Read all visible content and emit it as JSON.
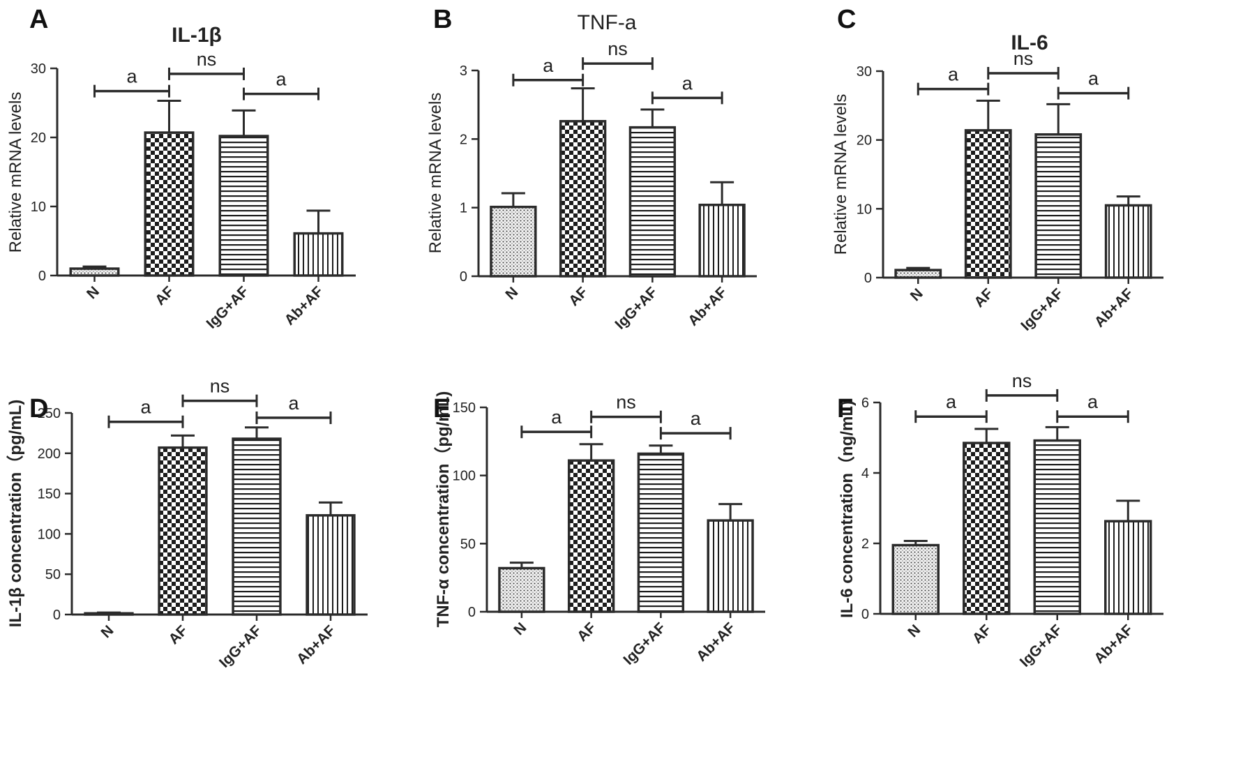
{
  "colors": {
    "ink": "#2b2b2b",
    "background": "#ffffff"
  },
  "chart_data": [
    {
      "panel": "A",
      "type": "bar",
      "title": "IL-1β",
      "title_bold": true,
      "ylabel": "Relative mRNA levels",
      "ylabel_bold": false,
      "categories": [
        "N",
        "AF",
        "IgG+AF",
        "Ab+AF"
      ],
      "values": [
        1,
        20.7,
        20.2,
        6.1
      ],
      "errors": [
        0.3,
        4.6,
        3.7,
        3.3
      ],
      "patterns": [
        "dots",
        "checker",
        "hlines",
        "vlines"
      ],
      "ylim": [
        0,
        30
      ],
      "yticks": [
        0,
        10,
        20,
        30
      ],
      "comparisons": [
        {
          "from": 0,
          "to": 1,
          "label": "a",
          "y": 26.7
        },
        {
          "from": 1,
          "to": 2,
          "label": "ns",
          "y": 29.2
        },
        {
          "from": 2,
          "to": 3,
          "label": "a",
          "y": 26.3
        }
      ]
    },
    {
      "panel": "B",
      "type": "bar",
      "title": "TNF-a",
      "title_bold": false,
      "ylabel": "Relative mRNA levels",
      "ylabel_bold": false,
      "categories": [
        "N",
        "AF",
        "IgG+AF",
        "Ab+AF"
      ],
      "values": [
        1.01,
        2.26,
        2.17,
        1.04
      ],
      "errors": [
        0.2,
        0.48,
        0.26,
        0.33
      ],
      "patterns": [
        "dots",
        "checker",
        "hlines",
        "vlines"
      ],
      "ylim": [
        0,
        3
      ],
      "yticks": [
        0,
        1,
        2,
        3
      ],
      "comparisons": [
        {
          "from": 0,
          "to": 1,
          "label": "a",
          "y": 2.86
        },
        {
          "from": 1,
          "to": 2,
          "label": "ns",
          "y": 3.1
        },
        {
          "from": 2,
          "to": 3,
          "label": "a",
          "y": 2.6
        }
      ]
    },
    {
      "panel": "C",
      "type": "bar",
      "title": "IL-6",
      "title_bold": true,
      "ylabel": "Relative mRNA levels",
      "ylabel_bold": false,
      "categories": [
        "N",
        "AF",
        "IgG+AF",
        "Ab+AF"
      ],
      "values": [
        1.1,
        21.4,
        20.8,
        10.5
      ],
      "errors": [
        0.3,
        4.3,
        4.4,
        1.3
      ],
      "patterns": [
        "dots",
        "checker",
        "hlines",
        "vlines"
      ],
      "ylim": [
        0,
        30
      ],
      "yticks": [
        0,
        10,
        20,
        30
      ],
      "comparisons": [
        {
          "from": 0,
          "to": 1,
          "label": "a",
          "y": 27.4
        },
        {
          "from": 1,
          "to": 2,
          "label": "ns",
          "y": 29.7
        },
        {
          "from": 2,
          "to": 3,
          "label": "a",
          "y": 26.8
        }
      ]
    },
    {
      "panel": "D",
      "type": "bar",
      "title": "",
      "title_bold": false,
      "ylabel": "IL-1β concentration（pg/mL)",
      "ylabel_bold": true,
      "categories": [
        "N",
        "AF",
        "IgG+AF",
        "Ab+AF"
      ],
      "values": [
        1.5,
        207,
        218,
        123
      ],
      "errors": [
        1,
        15,
        14,
        16
      ],
      "patterns": [
        "dots",
        "checker",
        "hlines",
        "vlines"
      ],
      "ylim": [
        0,
        250
      ],
      "yticks": [
        0,
        50,
        100,
        150,
        200,
        250
      ],
      "comparisons": [
        {
          "from": 0,
          "to": 1,
          "label": "a",
          "y": 239
        },
        {
          "from": 1,
          "to": 2,
          "label": "ns",
          "y": 265
        },
        {
          "from": 2,
          "to": 3,
          "label": "a",
          "y": 244
        }
      ]
    },
    {
      "panel": "E",
      "type": "bar",
      "title": "",
      "title_bold": false,
      "ylabel": "TNF-α concentration（pg/mL)",
      "ylabel_bold": true,
      "categories": [
        "N",
        "AF",
        "IgG+AF",
        "Ab+AF"
      ],
      "values": [
        32,
        111,
        116,
        67
      ],
      "errors": [
        4,
        12,
        6,
        12
      ],
      "patterns": [
        "dots",
        "checker",
        "hlines",
        "vlines"
      ],
      "ylim": [
        0,
        150
      ],
      "yticks": [
        0,
        50,
        100,
        150
      ],
      "comparisons": [
        {
          "from": 0,
          "to": 1,
          "label": "a",
          "y": 132
        },
        {
          "from": 1,
          "to": 2,
          "label": "ns",
          "y": 143
        },
        {
          "from": 2,
          "to": 3,
          "label": "a",
          "y": 131
        }
      ]
    },
    {
      "panel": "F",
      "type": "bar",
      "title": "",
      "title_bold": false,
      "ylabel": "IL-6 concentration（ng/mL)",
      "ylabel_bold": true,
      "categories": [
        "N",
        "AF",
        "IgG+AF",
        "Ab+AF"
      ],
      "values": [
        1.95,
        4.85,
        4.92,
        2.63
      ],
      "errors": [
        0.12,
        0.4,
        0.38,
        0.58
      ],
      "patterns": [
        "dots",
        "checker",
        "hlines",
        "vlines"
      ],
      "ylim": [
        0,
        6
      ],
      "yticks": [
        0,
        2,
        4,
        6
      ],
      "comparisons": [
        {
          "from": 0,
          "to": 1,
          "label": "a",
          "y": 5.6
        },
        {
          "from": 1,
          "to": 2,
          "label": "ns",
          "y": 6.2
        },
        {
          "from": 2,
          "to": 3,
          "label": "a",
          "y": 5.6
        }
      ]
    }
  ]
}
